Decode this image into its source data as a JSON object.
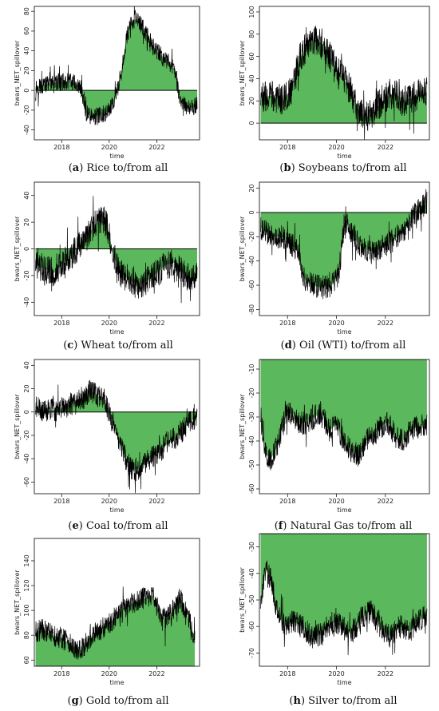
{
  "figure": {
    "panels": [
      {
        "id": "a",
        "caption_letter": "a",
        "caption_text": "Rice to/from all"
      },
      {
        "id": "b",
        "caption_letter": "b",
        "caption_text": "Soybeans to/from all"
      },
      {
        "id": "c",
        "caption_letter": "c",
        "caption_text": "Wheat to/from all"
      },
      {
        "id": "d",
        "caption_letter": "d",
        "caption_text": "Oil (WTI) to/from all"
      },
      {
        "id": "e",
        "caption_letter": "e",
        "caption_text": "Coal to/from all"
      },
      {
        "id": "f",
        "caption_letter": "f",
        "caption_text": "Natural Gas to/from all"
      },
      {
        "id": "g",
        "caption_letter": "g",
        "caption_text": "Gold to/from all"
      },
      {
        "id": "h",
        "caption_letter": "h",
        "caption_text": "Silver to/from all"
      }
    ]
  },
  "colors": {
    "fill": "#5cb85c",
    "line": "#000000",
    "frame": "#000000"
  },
  "chart_data": [
    {
      "type": "area",
      "panel": "a",
      "xlabel": "time",
      "ylabel": "bwars_NET_spillover",
      "xlim": [
        2016.85,
        2023.8
      ],
      "ylim": [
        -50,
        85
      ],
      "xticks": [
        2018,
        2020,
        2022
      ],
      "yticks": [
        -40,
        -20,
        0,
        20,
        40,
        60,
        80
      ],
      "baseline": 0,
      "series": [
        {
          "x": [
            2016.9,
            2017.3,
            2017.8,
            2018.3,
            2018.6,
            2018.8,
            2019.0,
            2019.3,
            2019.6,
            2019.9,
            2020.2,
            2020.5,
            2020.7,
            2020.9,
            2021.1,
            2021.3,
            2021.6,
            2021.9,
            2022.2,
            2022.5,
            2022.8,
            2022.95,
            2023.2,
            2023.5,
            2023.7
          ],
          "y": [
            3,
            6,
            8,
            9,
            7,
            3,
            -22,
            -28,
            -25,
            -22,
            -12,
            15,
            50,
            68,
            72,
            68,
            55,
            42,
            35,
            28,
            20,
            -12,
            -15,
            -18,
            -14
          ],
          "noise": 9
        }
      ]
    },
    {
      "type": "area",
      "panel": "b",
      "xlabel": "time",
      "ylabel": "bwars_NET_spillover",
      "xlim": [
        2016.85,
        2023.8
      ],
      "ylim": [
        -15,
        105
      ],
      "xticks": [
        2018,
        2020,
        2022
      ],
      "yticks": [
        0,
        20,
        40,
        60,
        80,
        100
      ],
      "baseline": 0,
      "series": [
        {
          "x": [
            2016.9,
            2017.3,
            2017.8,
            2018.2,
            2018.5,
            2018.8,
            2019.1,
            2019.4,
            2019.7,
            2020.0,
            2020.3,
            2020.6,
            2020.9,
            2021.2,
            2021.5,
            2021.8,
            2022.1,
            2022.4,
            2022.7,
            2023.0,
            2023.3,
            2023.7
          ],
          "y": [
            22,
            25,
            20,
            32,
            58,
            70,
            75,
            72,
            62,
            48,
            40,
            28,
            12,
            5,
            10,
            18,
            24,
            28,
            20,
            22,
            25,
            28
          ],
          "noise": 14
        }
      ]
    },
    {
      "type": "area",
      "panel": "c",
      "xlabel": "time",
      "ylabel": "bwars_NET_spillover",
      "xlim": [
        2016.85,
        2023.8
      ],
      "ylim": [
        -50,
        50
      ],
      "xticks": [
        2018,
        2020,
        2022
      ],
      "yticks": [
        -40,
        -20,
        0,
        20,
        40
      ],
      "baseline": 0,
      "series": [
        {
          "x": [
            2016.9,
            2017.3,
            2017.7,
            2018.1,
            2018.5,
            2018.8,
            2019.1,
            2019.4,
            2019.7,
            2019.9,
            2020.1,
            2020.4,
            2020.8,
            2021.2,
            2021.6,
            2022.0,
            2022.4,
            2022.8,
            2023.1,
            2023.4,
            2023.7
          ],
          "y": [
            -12,
            -15,
            -18,
            -10,
            -3,
            5,
            10,
            18,
            22,
            18,
            2,
            -16,
            -23,
            -27,
            -24,
            -18,
            -12,
            -10,
            -18,
            -22,
            -20
          ],
          "noise": 11
        }
      ]
    },
    {
      "type": "area",
      "panel": "d",
      "xlabel": "time",
      "ylabel": "bwars_NET_spillover",
      "xlim": [
        2016.85,
        2023.8
      ],
      "ylim": [
        -85,
        25
      ],
      "xticks": [
        2018,
        2020,
        2022
      ],
      "yticks": [
        -80,
        -60,
        -40,
        -20,
        0,
        20
      ],
      "baseline": 0,
      "series": [
        {
          "x": [
            2016.9,
            2017.2,
            2017.6,
            2018.0,
            2018.4,
            2018.7,
            2019.0,
            2019.4,
            2019.8,
            2020.1,
            2020.35,
            2020.6,
            2021.0,
            2021.4,
            2021.8,
            2022.2,
            2022.6,
            2022.9,
            2023.2,
            2023.5,
            2023.7
          ],
          "y": [
            -12,
            -18,
            -20,
            -22,
            -32,
            -55,
            -60,
            -62,
            -60,
            -50,
            -3,
            -18,
            -28,
            -32,
            -30,
            -25,
            -18,
            -12,
            0,
            5,
            8
          ],
          "noise": 10
        }
      ]
    },
    {
      "type": "area",
      "panel": "e",
      "xlabel": "time",
      "ylabel": "bwars_NET_spillover",
      "xlim": [
        2016.85,
        2023.8
      ],
      "ylim": [
        -70,
        45
      ],
      "xticks": [
        2018,
        2020,
        2022
      ],
      "yticks": [
        -60,
        -40,
        -20,
        0,
        20,
        40
      ],
      "baseline": 0,
      "series": [
        {
          "x": [
            2016.9,
            2017.3,
            2017.7,
            2018.1,
            2018.5,
            2018.9,
            2019.2,
            2019.5,
            2019.8,
            2020.1,
            2020.4,
            2020.7,
            2021.0,
            2021.3,
            2021.6,
            2022.0,
            2022.4,
            2022.8,
            2023.1,
            2023.4,
            2023.7
          ],
          "y": [
            5,
            0,
            2,
            4,
            8,
            12,
            18,
            15,
            8,
            -5,
            -25,
            -40,
            -50,
            -48,
            -42,
            -35,
            -28,
            -22,
            -15,
            -8,
            -4
          ],
          "noise": 10
        }
      ]
    },
    {
      "type": "area",
      "panel": "f",
      "xlabel": "time",
      "ylabel": "bwars_NET_spillover",
      "xlim": [
        2016.85,
        2023.8
      ],
      "ylim": [
        -62,
        -6
      ],
      "xticks": [
        2018,
        2020,
        2022
      ],
      "yticks": [
        -60,
        -50,
        -40,
        -30,
        -20,
        -10
      ],
      "baseline": -6,
      "series": [
        {
          "x": [
            2016.9,
            2017.1,
            2017.3,
            2017.6,
            2017.9,
            2018.2,
            2018.5,
            2018.8,
            2019.1,
            2019.4,
            2019.7,
            2020.0,
            2020.3,
            2020.6,
            2020.9,
            2021.2,
            2021.5,
            2021.8,
            2022.1,
            2022.4,
            2022.7,
            2023.0,
            2023.3,
            2023.7
          ],
          "y": [
            -30,
            -45,
            -48,
            -42,
            -30,
            -28,
            -33,
            -32,
            -30,
            -28,
            -36,
            -33,
            -40,
            -44,
            -46,
            -40,
            -38,
            -34,
            -32,
            -38,
            -40,
            -36,
            -34,
            -33
          ],
          "noise": 5
        }
      ]
    },
    {
      "type": "area",
      "panel": "g",
      "xlabel": "time",
      "ylabel": "bwars_NET_spillover",
      "xlim": [
        2016.85,
        2023.8
      ],
      "ylim": [
        55,
        158
      ],
      "xticks": [
        2018,
        2020,
        2022
      ],
      "yticks": [
        60,
        80,
        100,
        120,
        140
      ],
      "baseline": 55,
      "series": [
        {
          "x": [
            2016.9,
            2017.2,
            2017.6,
            2018.0,
            2018.4,
            2018.8,
            2019.2,
            2019.6,
            2020.0,
            2020.3,
            2020.6,
            2020.9,
            2021.2,
            2021.5,
            2021.8,
            2022.1,
            2022.4,
            2022.7,
            2023.0,
            2023.3,
            2023.6
          ],
          "y": [
            82,
            85,
            80,
            78,
            72,
            68,
            78,
            84,
            90,
            95,
            102,
            105,
            108,
            110,
            112,
            98,
            92,
            100,
            110,
            95,
            78
          ],
          "noise": 9
        }
      ]
    },
    {
      "type": "area",
      "panel": "h",
      "xlabel": "time",
      "ylabel": "bwars_NET_spillover",
      "xlim": [
        2016.85,
        2023.8
      ],
      "ylim": [
        -75,
        -25
      ],
      "xticks": [
        2018,
        2020,
        2022
      ],
      "yticks": [
        -70,
        -60,
        -50,
        -40,
        -30
      ],
      "baseline": -25,
      "series": [
        {
          "x": [
            2016.9,
            2017.1,
            2017.3,
            2017.6,
            2017.9,
            2018.2,
            2018.6,
            2019.0,
            2019.4,
            2019.8,
            2020.2,
            2020.6,
            2021.0,
            2021.4,
            2021.8,
            2022.2,
            2022.6,
            2023.0,
            2023.3,
            2023.7
          ],
          "y": [
            -52,
            -38,
            -42,
            -55,
            -60,
            -58,
            -60,
            -64,
            -63,
            -58,
            -60,
            -63,
            -57,
            -54,
            -60,
            -64,
            -60,
            -62,
            -58,
            -56
          ],
          "noise": 4.5
        }
      ]
    }
  ]
}
